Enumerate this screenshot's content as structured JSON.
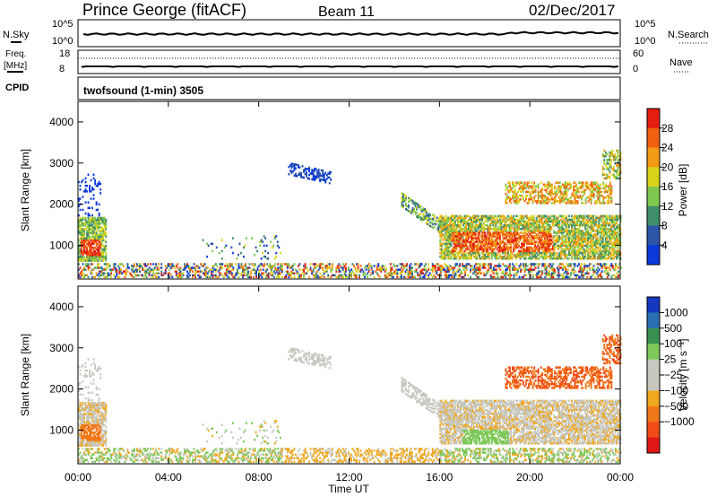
{
  "header": {
    "station": "Prince George (fitACF)",
    "beam": "Beam 11",
    "date": "02/Dec/2017"
  },
  "noise_panel": {
    "left_label": "N.Sky",
    "right_label": "N.Search",
    "left_ticks": [
      "10^5",
      "10^0"
    ],
    "right_ticks": [
      "10^5",
      "10^0"
    ]
  },
  "freq_panel": {
    "left_label_line1": "Freq.",
    "left_label_line2": "[MHz]",
    "right_label": "Nave",
    "left_ticks": [
      "18",
      "8"
    ],
    "right_ticks": [
      "60",
      "0"
    ]
  },
  "cpid_panel": {
    "label": "CPID",
    "text": "twofsound (1-min) 3505"
  },
  "colors": {
    "power": [
      "#0b3ad8",
      "#2d55a8",
      "#3f8e6a",
      "#7ec850",
      "#d9d21a",
      "#f39a16",
      "#f06010",
      "#e41e10"
    ],
    "velocity": [
      "#1538c0",
      "#2a6fb0",
      "#3a9050",
      "#7fc85a",
      "#c8c8c0",
      "#c8c8c0",
      "#f0a820",
      "#f07818",
      "#f04c18",
      "#e01818"
    ]
  },
  "chart_data": [
    {
      "type": "heatmap",
      "name_panel": "power",
      "ylabel": "Slant Range [km]",
      "ylim": [
        180,
        4500
      ],
      "yticks": [
        "1000",
        "2000",
        "3000",
        "4000"
      ],
      "xlim_hours": [
        0,
        24
      ],
      "colorbar_label": "Power [dB]",
      "colorbar_ticks": [
        "4",
        "8",
        "12",
        "16",
        "20",
        "24",
        "28"
      ],
      "features": [
        {
          "t": [
            0.0,
            1.2
          ],
          "range": [
            700,
            1600
          ],
          "level": "high"
        },
        {
          "t": [
            9.3,
            11.2
          ],
          "range": [
            2600,
            3000
          ],
          "level": "low"
        },
        {
          "t": [
            14.5,
            24.0
          ],
          "range": [
            700,
            1700
          ],
          "level": "high"
        },
        {
          "t": [
            18.8,
            24.0
          ],
          "range": [
            2000,
            2500
          ],
          "level": "medium"
        },
        {
          "t": [
            0.0,
            24.0
          ],
          "range": [
            200,
            600
          ],
          "level": "mixed"
        }
      ]
    },
    {
      "type": "heatmap",
      "name_panel": "velocity",
      "ylabel": "Slant Range [km]",
      "ylim": [
        180,
        4500
      ],
      "yticks": [
        "1000",
        "2000",
        "3000",
        "4000"
      ],
      "xlim_hours": [
        0,
        24
      ],
      "xticks": [
        "00:00",
        "04:00",
        "08:00",
        "12:00",
        "16:00",
        "20:00",
        "00:00"
      ],
      "xlabel": "Time UT",
      "colorbar_label": "Velocity [m s⁻¹]",
      "colorbar_ticks": [
        "1000",
        "500",
        "100",
        "25",
        "−25",
        "−100",
        "−500",
        "−1000"
      ]
    }
  ]
}
